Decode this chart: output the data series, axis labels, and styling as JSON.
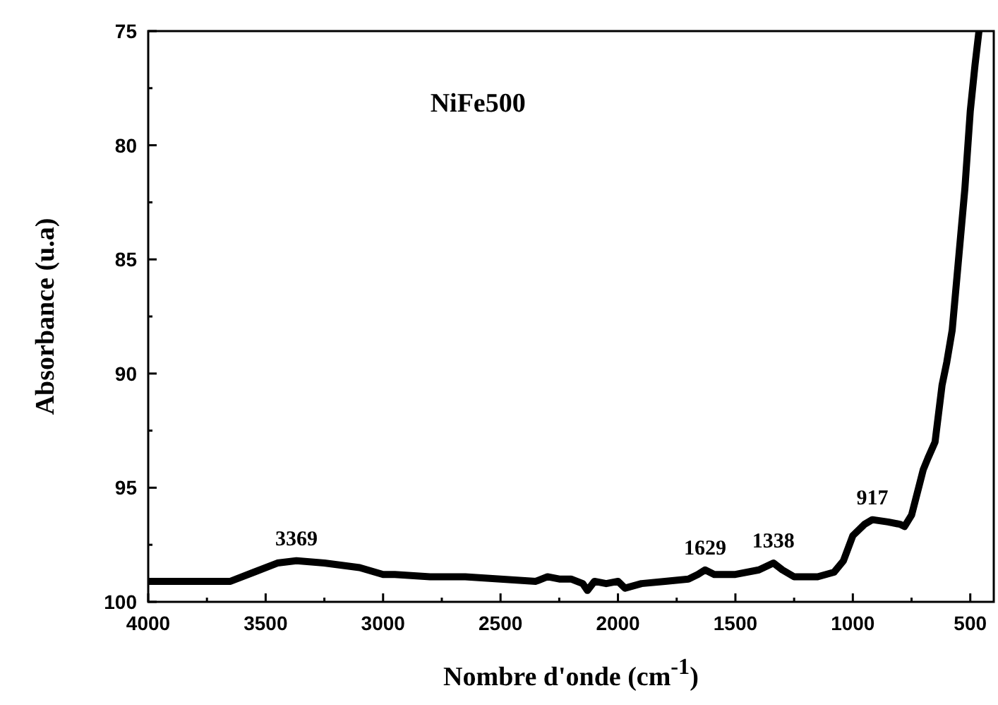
{
  "chart_data": {
    "type": "line",
    "title": "NiFe500",
    "xlabel": "Nombre d'onde (cm$^{-1}$)",
    "ylabel": "Absorbance (u.a)",
    "xlim": [
      4000,
      400
    ],
    "ylim": [
      100,
      75
    ],
    "xticks": [
      4000,
      {
        "value": 3750,
        "label": null
      },
      3500,
      {
        "value": 3250,
        "label": null
      },
      3000,
      {
        "value": 2750,
        "label": null
      },
      2500,
      {
        "value": 2250,
        "label": null
      },
      2000,
      {
        "value": 1750,
        "label": null
      },
      1500,
      {
        "value": 1250,
        "label": null
      },
      1000,
      {
        "value": 750,
        "label": null
      },
      500
    ],
    "yticks": [
      75,
      {
        "value": 77.5,
        "label": null
      },
      80,
      {
        "value": 82.5,
        "label": null
      },
      85,
      {
        "value": 87.5,
        "label": null
      },
      90,
      {
        "value": 92.5,
        "label": null
      },
      95,
      {
        "value": 97.5,
        "label": null
      },
      100
    ],
    "grid": false,
    "marker": "none",
    "line_style": "solid",
    "series": [
      {
        "color": "#000000",
        "x": [
          4000,
          3850,
          3700,
          3650,
          3550,
          3450,
          3369,
          3250,
          3100,
          3000,
          2950,
          2800,
          2650,
          2500,
          2350,
          2300,
          2250,
          2200,
          2150,
          2130,
          2100,
          2050,
          2000,
          1970,
          1900,
          1800,
          1700,
          1660,
          1629,
          1590,
          1500,
          1400,
          1338,
          1300,
          1250,
          1150,
          1080,
          1040,
          1000,
          950,
          917,
          850,
          800,
          780,
          750,
          720,
          700,
          680,
          650,
          620,
          600,
          577,
          550,
          523,
          500,
          480,
          463
        ],
        "values": [
          99.1,
          99.1,
          99.1,
          99.1,
          98.7,
          98.3,
          98.2,
          98.3,
          98.5,
          98.8,
          98.8,
          98.9,
          98.9,
          99.0,
          99.1,
          98.9,
          99.0,
          99.0,
          99.2,
          99.5,
          99.1,
          99.2,
          99.1,
          99.4,
          99.2,
          99.1,
          99.0,
          98.8,
          98.6,
          98.8,
          98.8,
          98.6,
          98.3,
          98.6,
          98.9,
          98.9,
          98.7,
          98.2,
          97.1,
          96.6,
          96.4,
          96.5,
          96.6,
          96.7,
          96.2,
          95.0,
          94.2,
          93.7,
          93.0,
          90.5,
          89.5,
          88.1,
          85.0,
          81.9,
          78.5,
          76.5,
          75
        ]
      }
    ],
    "annotations": [
      {
        "text": "3369",
        "x": 3369,
        "y": 98.2
      },
      {
        "text": "1629",
        "x": 1629,
        "y": 98.6
      },
      {
        "text": "1338",
        "x": 1338,
        "y": 98.3
      },
      {
        "text": "917",
        "x": 917,
        "y": 96.4
      }
    ]
  }
}
